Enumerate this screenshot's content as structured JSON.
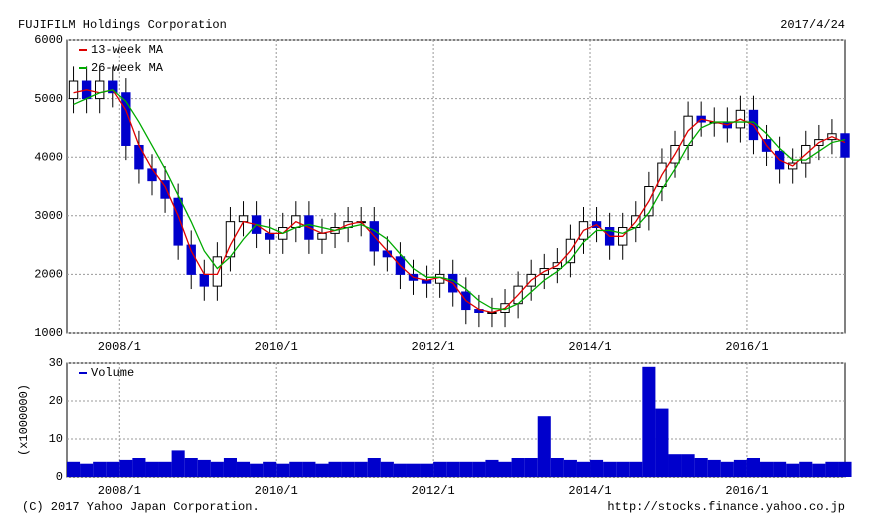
{
  "header": {
    "title": "FUJIFILM Holdings Corporation",
    "date": "2017/4/24"
  },
  "footer": {
    "copyright": "(C) 2017 Yahoo Japan Corporation.",
    "url": "http://stocks.finance.yahoo.co.jp"
  },
  "chart_data": [
    {
      "type": "candlestick",
      "x": [
        "2007/6",
        "2007/8",
        "2007/10",
        "2007/12",
        "2008/2",
        "2008/4",
        "2008/6",
        "2008/8",
        "2008/10",
        "2008/12",
        "2009/2",
        "2009/4",
        "2009/6",
        "2009/8",
        "2009/10",
        "2009/12",
        "2010/2",
        "2010/4",
        "2010/6",
        "2010/8",
        "2010/10",
        "2010/12",
        "2011/2",
        "2011/4",
        "2011/6",
        "2011/8",
        "2011/10",
        "2011/12",
        "2012/2",
        "2012/4",
        "2012/6",
        "2012/8",
        "2012/10",
        "2012/12",
        "2013/2",
        "2013/4",
        "2013/6",
        "2013/8",
        "2013/10",
        "2013/12",
        "2014/2",
        "2014/4",
        "2014/6",
        "2014/8",
        "2014/10",
        "2014/12",
        "2015/2",
        "2015/4",
        "2015/6",
        "2015/8",
        "2015/10",
        "2015/12",
        "2016/2",
        "2016/4",
        "2016/6",
        "2016/8",
        "2016/10",
        "2016/12",
        "2017/2",
        "2017/4"
      ],
      "open": [
        5000,
        5300,
        5000,
        5300,
        5100,
        4200,
        3800,
        3600,
        3300,
        2500,
        2000,
        1800,
        2300,
        2900,
        3000,
        2700,
        2600,
        2800,
        3000,
        2600,
        2700,
        2800,
        2900,
        2900,
        2400,
        2300,
        2000,
        1900,
        1850,
        2000,
        1700,
        1400,
        1350,
        1350,
        1500,
        1800,
        2000,
        2100,
        2200,
        2600,
        2900,
        2800,
        2500,
        2800,
        3000,
        3500,
        3900,
        4200,
        4700,
        4600,
        4600,
        4500,
        4800,
        4300,
        4100,
        3800,
        3900,
        4200,
        4300,
        4400
      ],
      "high": [
        5550,
        5550,
        5550,
        5550,
        5350,
        4450,
        4050,
        3850,
        3550,
        2750,
        2250,
        2550,
        3150,
        3250,
        3250,
        2950,
        3050,
        3250,
        3250,
        2950,
        3050,
        3150,
        3150,
        3150,
        2650,
        2550,
        2250,
        2150,
        2250,
        2250,
        1950,
        1650,
        1600,
        1750,
        2050,
        2250,
        2350,
        2450,
        2850,
        3150,
        3150,
        3050,
        3050,
        3250,
        3750,
        4150,
        4450,
        4950,
        4950,
        4850,
        4850,
        5050,
        5050,
        4550,
        4350,
        4150,
        4450,
        4550,
        4650,
        4650
      ],
      "low": [
        4750,
        4750,
        4750,
        4850,
        3950,
        3550,
        3350,
        3050,
        2250,
        1750,
        1550,
        1550,
        2050,
        2650,
        2450,
        2350,
        2350,
        2550,
        2350,
        2350,
        2450,
        2550,
        2650,
        2150,
        2050,
        1750,
        1650,
        1600,
        1600,
        1450,
        1150,
        1100,
        1100,
        1100,
        1250,
        1550,
        1750,
        1850,
        1950,
        2350,
        2550,
        2250,
        2250,
        2550,
        2750,
        3250,
        3650,
        3950,
        4350,
        4350,
        4250,
        4250,
        4050,
        3850,
        3550,
        3550,
        3650,
        3950,
        4050,
        3750
      ],
      "close": [
        5300,
        5000,
        5300,
        5100,
        4200,
        3800,
        3600,
        3300,
        2500,
        2000,
        1800,
        2300,
        2900,
        3000,
        2700,
        2600,
        2800,
        3000,
        2600,
        2700,
        2800,
        2900,
        2900,
        2400,
        2300,
        2000,
        1900,
        1850,
        2000,
        1700,
        1400,
        1350,
        1350,
        1500,
        1800,
        2000,
        2100,
        2200,
        2600,
        2900,
        2800,
        2500,
        2800,
        3000,
        3500,
        3900,
        4200,
        4700,
        4600,
        4600,
        4500,
        4800,
        4300,
        4100,
        3800,
        3900,
        4200,
        4300,
        4400,
        4000
      ],
      "up_color": "#ffffff",
      "down_color": "#0000cc",
      "series": [
        {
          "name": "13-week MA",
          "color": "#dd0000",
          "values": [
            5100,
            5150,
            5100,
            5150,
            4800,
            4200,
            3800,
            3500,
            3000,
            2400,
            2000,
            2000,
            2500,
            2900,
            2850,
            2700,
            2700,
            2900,
            2800,
            2700,
            2750,
            2850,
            2900,
            2650,
            2400,
            2150,
            1950,
            1900,
            1950,
            1850,
            1550,
            1400,
            1350,
            1420,
            1650,
            1900,
            2050,
            2150,
            2400,
            2750,
            2850,
            2650,
            2650,
            2900,
            3250,
            3700,
            4050,
            4450,
            4650,
            4600,
            4550,
            4650,
            4550,
            4200,
            3950,
            3850,
            4050,
            4250,
            4350,
            4250
          ]
        },
        {
          "name": "26-week MA",
          "color": "#00aa00",
          "values": [
            4900,
            5000,
            5100,
            5150,
            4950,
            4600,
            4200,
            3800,
            3350,
            2900,
            2400,
            2100,
            2300,
            2600,
            2850,
            2800,
            2700,
            2800,
            2850,
            2800,
            2750,
            2800,
            2850,
            2750,
            2600,
            2350,
            2100,
            1950,
            1950,
            1900,
            1750,
            1550,
            1420,
            1400,
            1500,
            1700,
            1900,
            2050,
            2250,
            2550,
            2750,
            2750,
            2700,
            2800,
            3050,
            3450,
            3800,
            4200,
            4500,
            4600,
            4600,
            4600,
            4600,
            4400,
            4150,
            3950,
            3950,
            4100,
            4250,
            4300
          ]
        }
      ],
      "xlim": [
        "2007/5",
        "2017/4"
      ],
      "xticks": [
        "2008/1",
        "2010/1",
        "2012/1",
        "2014/1",
        "2016/1"
      ],
      "ylim": [
        1000,
        6000
      ],
      "yticks": [
        1000,
        2000,
        3000,
        4000,
        5000,
        6000
      ],
      "grid": true,
      "legend": "top-left"
    },
    {
      "type": "bar",
      "x": [
        "2007/6",
        "2007/8",
        "2007/10",
        "2007/12",
        "2008/2",
        "2008/4",
        "2008/6",
        "2008/8",
        "2008/10",
        "2008/12",
        "2009/2",
        "2009/4",
        "2009/6",
        "2009/8",
        "2009/10",
        "2009/12",
        "2010/2",
        "2010/4",
        "2010/6",
        "2010/8",
        "2010/10",
        "2010/12",
        "2011/2",
        "2011/4",
        "2011/6",
        "2011/8",
        "2011/10",
        "2011/12",
        "2012/2",
        "2012/4",
        "2012/6",
        "2012/8",
        "2012/10",
        "2012/12",
        "2013/2",
        "2013/4",
        "2013/6",
        "2013/8",
        "2013/10",
        "2013/12",
        "2014/2",
        "2014/4",
        "2014/6",
        "2014/8",
        "2014/10",
        "2014/12",
        "2015/2",
        "2015/4",
        "2015/6",
        "2015/8",
        "2015/10",
        "2015/12",
        "2016/2",
        "2016/4",
        "2016/6",
        "2016/8",
        "2016/10",
        "2016/12",
        "2017/2",
        "2017/4"
      ],
      "y_label": "(x1000000)",
      "series": [
        {
          "name": "Volume",
          "color": "#0000cc",
          "values": [
            4,
            3.5,
            4,
            4,
            4.5,
            5,
            4,
            4,
            7,
            5,
            4.5,
            4,
            5,
            4,
            3.5,
            4,
            3.5,
            4,
            4,
            3.5,
            4,
            4,
            4,
            5,
            4,
            3.5,
            3.5,
            3.5,
            4,
            4,
            4,
            4,
            4.5,
            4,
            5,
            5,
            16,
            5,
            4.5,
            4,
            4.5,
            4,
            4,
            4,
            29,
            18,
            6,
            6,
            5,
            4.5,
            4,
            4.5,
            5,
            4,
            4,
            3.5,
            4,
            3.5,
            4,
            4
          ]
        }
      ],
      "xlim": [
        "2007/5",
        "2017/4"
      ],
      "xticks": [
        "2008/1",
        "2010/1",
        "2012/1",
        "2014/1",
        "2016/1"
      ],
      "ylim": [
        0,
        30
      ],
      "yticks": [
        0,
        10,
        20,
        30
      ],
      "grid": true,
      "legend": "top-left"
    }
  ]
}
